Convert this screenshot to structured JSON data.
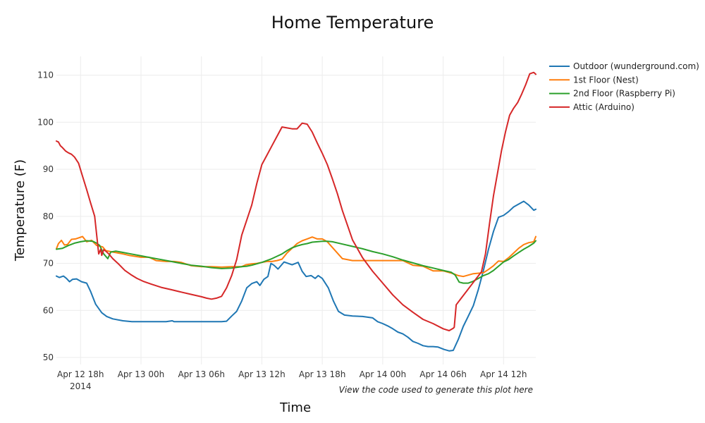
{
  "chart_data": {
    "type": "line",
    "title": "Home Temperature",
    "xlabel": "Time",
    "ylabel": "Temperature (F)",
    "annotation": "View the code used to generate this plot here",
    "x_ticks": [
      {
        "hour": 18,
        "label": "Apr 12 18h",
        "sublabel": "2014"
      },
      {
        "hour": 24,
        "label": "Apr 13 00h"
      },
      {
        "hour": 30,
        "label": "Apr 13 06h"
      },
      {
        "hour": 36,
        "label": "Apr 13 12h"
      },
      {
        "hour": 42,
        "label": "Apr 13 18h"
      },
      {
        "hour": 48,
        "label": "Apr 14 00h"
      },
      {
        "hour": 54,
        "label": "Apr 14 06h"
      },
      {
        "hour": 60,
        "label": "Apr 14 12h"
      }
    ],
    "x_unit": "hours since Apr 12 00h 2014",
    "xlim": [
      15.6,
      63.2
    ],
    "ylim": [
      48.5,
      114
    ],
    "y_ticks": [
      50,
      60,
      70,
      80,
      90,
      100,
      110
    ],
    "legend_position": "top-right",
    "grid": true,
    "series": [
      {
        "name": "Outdoor (wunderground.com)",
        "color": "#1f77b4",
        "x": [
          15.6,
          15.9,
          16.3,
          16.6,
          16.9,
          17.2,
          17.6,
          18.1,
          18.6,
          19.0,
          19.5,
          20.1,
          20.6,
          21.2,
          22.2,
          23.1,
          25.2,
          26.5,
          27.1,
          27.3,
          28.0,
          29.5,
          30.6,
          31.4,
          32.0,
          32.5,
          33.0,
          33.5,
          34.0,
          34.5,
          35.0,
          35.5,
          35.8,
          36.2,
          36.6,
          36.9,
          37.2,
          37.6,
          38.2,
          39.0,
          39.6,
          40.0,
          40.4,
          40.9,
          41.3,
          41.6,
          42.0,
          42.6,
          43.1,
          43.6,
          44.2,
          45.0,
          46.0,
          47.0,
          47.5,
          48.0,
          48.5,
          49.0,
          49.5,
          50.0,
          50.5,
          51.0,
          51.5,
          52.0,
          52.5,
          53.0,
          53.5,
          54.1,
          54.6,
          55.0,
          55.5,
          56.0,
          56.5,
          57.0,
          57.5,
          58.0,
          58.5,
          59.0,
          59.5,
          60.0,
          60.5,
          61.0,
          61.5,
          62.0,
          62.5,
          63.0,
          63.2
        ],
        "values": [
          67.3,
          67.0,
          67.3,
          66.8,
          66.1,
          66.6,
          66.7,
          66.1,
          65.8,
          64.0,
          61.3,
          59.5,
          58.7,
          58.2,
          57.8,
          57.6,
          57.6,
          57.6,
          57.8,
          57.6,
          57.6,
          57.6,
          57.6,
          57.6,
          57.6,
          57.7,
          58.8,
          59.8,
          62.0,
          64.8,
          65.7,
          66.1,
          65.3,
          66.6,
          67.2,
          70.0,
          69.6,
          68.8,
          70.3,
          69.7,
          70.2,
          68.3,
          67.2,
          67.4,
          66.8,
          67.4,
          66.8,
          64.8,
          62.0,
          59.8,
          59.0,
          58.8,
          58.7,
          58.4,
          57.6,
          57.2,
          56.7,
          56.1,
          55.4,
          55.0,
          54.3,
          53.4,
          53.0,
          52.5,
          52.3,
          52.3,
          52.2,
          51.7,
          51.4,
          51.5,
          53.8,
          56.6,
          58.8,
          61.0,
          64.5,
          68.5,
          73.0,
          76.8,
          79.8,
          80.2,
          81.0,
          82.0,
          82.6,
          83.2,
          82.4,
          81.3,
          81.5
        ]
      },
      {
        "name": "1st Floor (Nest)",
        "color": "#ff7f0e",
        "x": [
          15.6,
          15.8,
          16.1,
          16.4,
          16.7,
          17.1,
          17.5,
          18.2,
          18.6,
          19.1,
          19.6,
          20.2,
          20.5,
          21.2,
          22.2,
          22.8,
          24.0,
          24.8,
          25.5,
          26.5,
          27.3,
          28.0,
          29.0,
          30.0,
          31.0,
          32.0,
          33.0,
          34.0,
          34.4,
          35.0,
          35.5,
          36.0,
          36.5,
          37.0,
          37.5,
          38.0,
          38.5,
          39.0,
          39.5,
          40.0,
          40.5,
          41.0,
          41.5,
          42.0,
          42.5,
          43.0,
          44.0,
          45.0,
          46.0,
          47.0,
          48.0,
          49.0,
          49.5,
          50.0,
          51.0,
          52.0,
          53.0,
          54.0,
          55.0,
          55.5,
          56.0,
          57.0,
          58.0,
          58.5,
          59.0,
          59.5,
          60.0,
          60.5,
          61.0,
          61.5,
          62.0,
          62.5,
          63.0,
          63.2
        ],
        "values": [
          73.1,
          74.2,
          74.9,
          73.9,
          74.0,
          75.1,
          75.2,
          75.7,
          74.6,
          74.9,
          73.8,
          73.5,
          72.7,
          72.4,
          72.0,
          71.7,
          71.3,
          71.3,
          70.6,
          70.4,
          70.4,
          70.2,
          69.5,
          69.3,
          69.3,
          69.2,
          69.3,
          69.3,
          69.7,
          69.9,
          70.0,
          70.2,
          70.4,
          70.4,
          70.6,
          70.9,
          72.2,
          73.2,
          74.2,
          74.8,
          75.2,
          75.6,
          75.2,
          75.2,
          74.6,
          73.4,
          71.0,
          70.6,
          70.6,
          70.6,
          70.6,
          70.6,
          70.6,
          70.6,
          69.6,
          69.4,
          68.4,
          68.4,
          67.8,
          67.4,
          67.2,
          67.8,
          68.0,
          68.7,
          69.5,
          70.5,
          70.4,
          71.2,
          72.2,
          73.2,
          74.0,
          74.4,
          74.6,
          75.7
        ]
      },
      {
        "name": "2nd Floor (Raspberry Pi)",
        "color": "#2ca02c",
        "x": [
          15.6,
          16.2,
          16.8,
          17.4,
          18.0,
          18.6,
          19.2,
          19.6,
          19.9,
          20.3,
          20.7,
          21.0,
          21.5,
          22.0,
          23.0,
          24.0,
          25.0,
          26.0,
          27.0,
          28.0,
          29.0,
          30.0,
          31.0,
          32.0,
          33.0,
          34.0,
          34.5,
          35.0,
          35.5,
          36.0,
          36.5,
          37.0,
          37.5,
          38.0,
          38.5,
          39.0,
          39.5,
          40.0,
          40.5,
          41.0,
          41.5,
          42.0,
          42.5,
          43.0,
          44.0,
          45.0,
          46.0,
          47.0,
          48.0,
          49.0,
          50.0,
          51.0,
          52.0,
          53.0,
          54.0,
          54.8,
          55.2,
          55.6,
          56.0,
          56.5,
          57.0,
          57.5,
          58.0,
          58.5,
          59.0,
          59.5,
          60.0,
          60.5,
          61.0,
          61.5,
          62.0,
          62.5,
          63.0,
          63.2
        ],
        "values": [
          73.0,
          73.2,
          73.8,
          74.3,
          74.6,
          74.8,
          74.7,
          74.3,
          73.8,
          72.0,
          71.0,
          72.4,
          72.6,
          72.4,
          72.0,
          71.6,
          71.2,
          70.8,
          70.4,
          70.0,
          69.6,
          69.4,
          69.1,
          68.9,
          69.0,
          69.3,
          69.4,
          69.6,
          69.9,
          70.2,
          70.6,
          71.0,
          71.5,
          72.0,
          72.7,
          73.3,
          73.7,
          74.0,
          74.2,
          74.5,
          74.6,
          74.7,
          74.7,
          74.6,
          74.1,
          73.6,
          73.1,
          72.5,
          72.0,
          71.4,
          70.7,
          70.1,
          69.5,
          69.0,
          68.5,
          68.1,
          67.5,
          66.0,
          65.8,
          65.8,
          66.2,
          66.8,
          67.4,
          67.8,
          68.5,
          69.4,
          70.3,
          70.8,
          71.6,
          72.3,
          73.0,
          73.6,
          74.3,
          74.8
        ]
      },
      {
        "name": "Attic (Arduino)",
        "color": "#d62728",
        "x": [
          15.6,
          15.8,
          16.0,
          16.2,
          16.5,
          16.8,
          17.1,
          17.4,
          17.8,
          18.2,
          18.6,
          19.0,
          19.4,
          19.8,
          20.0,
          20.1,
          20.3,
          20.5,
          20.8,
          21.2,
          21.8,
          22.4,
          23.0,
          23.6,
          24.2,
          25.0,
          26.0,
          27.0,
          28.0,
          29.0,
          30.0,
          30.5,
          31.0,
          31.5,
          32.0,
          32.5,
          33.0,
          33.5,
          34.0,
          34.5,
          35.0,
          35.5,
          36.0,
          36.5,
          37.0,
          37.5,
          38.0,
          38.5,
          39.0,
          39.5,
          40.0,
          40.5,
          41.0,
          41.5,
          42.0,
          42.5,
          43.0,
          43.5,
          44.0,
          45.0,
          46.0,
          47.0,
          48.0,
          49.0,
          50.0,
          51.0,
          52.0,
          53.0,
          54.0,
          54.6,
          55.0,
          55.1,
          55.3,
          55.8,
          56.3,
          56.8,
          57.3,
          57.8,
          58.2,
          58.6,
          59.0,
          59.4,
          59.8,
          60.2,
          60.6,
          61.0,
          61.4,
          61.8,
          62.2,
          62.6,
          63.0,
          63.2
        ],
        "values": [
          96.0,
          95.8,
          95.0,
          94.6,
          93.9,
          93.5,
          93.2,
          92.6,
          91.3,
          88.5,
          85.7,
          82.8,
          80.0,
          72.0,
          73.0,
          71.7,
          72.9,
          72.6,
          72.0,
          71.0,
          69.8,
          68.5,
          67.6,
          66.8,
          66.2,
          65.6,
          64.9,
          64.4,
          63.9,
          63.4,
          62.9,
          62.6,
          62.4,
          62.6,
          63.0,
          64.8,
          67.4,
          70.8,
          76.0,
          79.2,
          82.4,
          87.0,
          91.0,
          93.0,
          95.0,
          97.0,
          99.0,
          98.8,
          98.6,
          98.6,
          99.8,
          99.6,
          97.9,
          95.6,
          93.4,
          91.0,
          88.0,
          84.8,
          81.2,
          75.0,
          71.2,
          68.3,
          65.8,
          63.3,
          61.2,
          59.6,
          58.1,
          57.2,
          56.1,
          55.7,
          56.2,
          56.4,
          61.2,
          62.6,
          64.0,
          65.4,
          66.8,
          68.2,
          72.0,
          78.4,
          84.4,
          89.2,
          94.0,
          98.0,
          101.5,
          103.0,
          104.2,
          106.0,
          108.0,
          110.3,
          110.6,
          110.2
        ]
      }
    ]
  }
}
